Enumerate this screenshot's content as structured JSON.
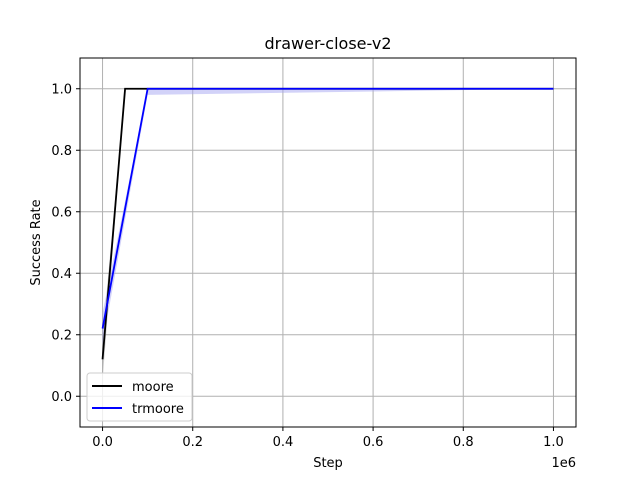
{
  "chart_data": {
    "type": "line",
    "title": "drawer-close-v2",
    "xlabel": "Step",
    "ylabel": "Success Rate",
    "x_offset_label": "1e6",
    "xlim": [
      -50000,
      1050000
    ],
    "ylim": [
      -0.1,
      1.1
    ],
    "xticks": [
      0,
      200000,
      400000,
      600000,
      800000,
      1000000
    ],
    "xtick_labels": [
      "0.0",
      "0.2",
      "0.4",
      "0.6",
      "0.8",
      "1.0"
    ],
    "yticks": [
      0.0,
      0.2,
      0.4,
      0.6,
      0.8,
      1.0
    ],
    "ytick_labels": [
      "0.0",
      "0.2",
      "0.4",
      "0.6",
      "0.8",
      "1.0"
    ],
    "grid": true,
    "legend_position": "lower-left",
    "series": [
      {
        "name": "moore",
        "color": "#000000",
        "band_color": "#9e9e9e",
        "x": [
          0,
          50000,
          100000,
          1000000
        ],
        "y": [
          0.12,
          1.0,
          1.0,
          1.0
        ],
        "y_lower": [
          0.05,
          1.0,
          1.0,
          1.0
        ],
        "y_upper": [
          0.19,
          1.0,
          1.0,
          1.0
        ]
      },
      {
        "name": "trmoore",
        "color": "#0000ff",
        "band_color": "#a6a6f2",
        "x": [
          0,
          100000,
          1000000
        ],
        "y": [
          0.22,
          1.0,
          1.0
        ],
        "y_lower": [
          0.17,
          0.98,
          1.0
        ],
        "y_upper": [
          0.27,
          1.0,
          1.0
        ]
      }
    ]
  }
}
